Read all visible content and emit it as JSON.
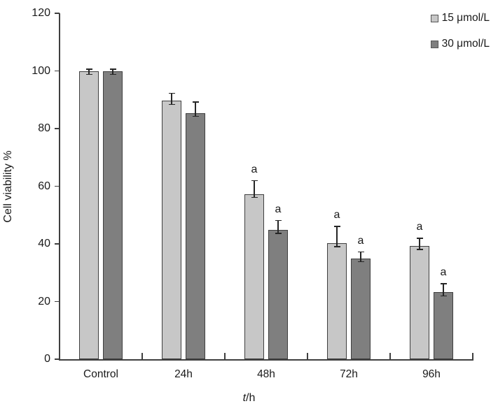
{
  "figure": {
    "xlabel_italic": "t",
    "xlabel_rest": "/h"
  },
  "chart_data": {
    "type": "bar",
    "title": "",
    "ylabel": "Cell viability %",
    "xlabel": "t/h",
    "ylim": [
      0,
      120
    ],
    "yticks": [
      0,
      20,
      40,
      60,
      80,
      100,
      120
    ],
    "grid": false,
    "legend_position": "top-right",
    "categories": [
      "Control",
      "24h",
      "48h",
      "72h",
      "96h"
    ],
    "series": [
      {
        "name": "15 μmol/L",
        "color": "#c7c7c7",
        "values": [
          100,
          89.6,
          57.3,
          40.3,
          39.3
        ],
        "errors": [
          0.6,
          2.6,
          4.6,
          5.8,
          2.6
        ],
        "sig_labels": [
          "",
          "",
          "a",
          "a",
          "a"
        ]
      },
      {
        "name": "30 μmol/L",
        "color": "#7f7f7f",
        "values": [
          100,
          85.4,
          44.9,
          35.0,
          23.2
        ],
        "errors": [
          0.6,
          3.8,
          3.2,
          2.2,
          3.0
        ],
        "sig_labels": [
          "",
          "",
          "a",
          "a",
          "a"
        ]
      }
    ],
    "axis_color": "#3f3f3f",
    "bar_border_color": "#3f3f3f",
    "error_bar_color": "#262626",
    "text_color": "#1a1a1a"
  }
}
